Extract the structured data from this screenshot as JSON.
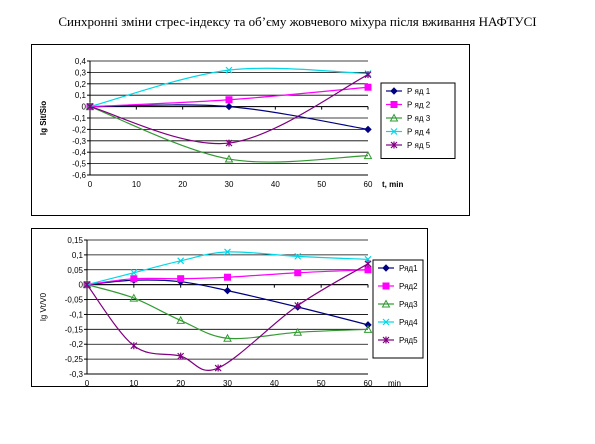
{
  "title": "Синхронні зміни стрес-індексу та об’єму жовчевого міхура після вживання НАФТУСІ",
  "chart_data": [
    {
      "type": "line",
      "ylabel": "lg Sit/Sio",
      "xlabel": "t, min",
      "xlim": [
        0,
        60
      ],
      "ylim": [
        -0.6,
        0.4
      ],
      "x_ticks": [
        0,
        10,
        20,
        30,
        40,
        50,
        60
      ],
      "y_ticks": [
        -0.6,
        -0.5,
        -0.4,
        -0.3,
        -0.2,
        -0.1,
        0,
        0.1,
        0.2,
        0.3,
        0.4
      ],
      "x_tick_labels": [
        "0",
        "10",
        "20",
        "30",
        "40",
        "50",
        "60"
      ],
      "y_tick_labels": [
        "-0,6",
        "-0,5",
        "-0,4",
        "-0,3",
        "-0,2",
        "-0,1",
        "0",
        "0,1",
        "0,2",
        "0,3",
        "0,4"
      ],
      "grid": "horizontal",
      "legend_position": "right",
      "series": [
        {
          "name": "Р яд 1",
          "color": "#000080",
          "marker": "diamond",
          "points": [
            [
              0,
              0
            ],
            [
              30,
              0
            ],
            [
              60,
              -0.2
            ]
          ]
        },
        {
          "name": "Р яд 2",
          "color": "#ff00ff",
          "marker": "square",
          "points": [
            [
              0,
              0
            ],
            [
              30,
              0.06
            ],
            [
              60,
              0.17
            ]
          ]
        },
        {
          "name": "Р яд 3",
          "color": "#339933",
          "marker": "triangle",
          "points": [
            [
              0,
              0
            ],
            [
              30,
              -0.46
            ],
            [
              60,
              -0.43
            ]
          ]
        },
        {
          "name": "Р яд 4",
          "color": "#00d8e8",
          "marker": "x",
          "points": [
            [
              0,
              0
            ],
            [
              30,
              0.32
            ],
            [
              60,
              0.29
            ]
          ]
        },
        {
          "name": "Р яд 5",
          "color": "#800080",
          "marker": "star",
          "points": [
            [
              0,
              0
            ],
            [
              30,
              -0.32
            ],
            [
              60,
              0.28
            ]
          ]
        }
      ]
    },
    {
      "type": "line",
      "ylabel": "lg Vt/V0",
      "xlabel": "min",
      "xlim": [
        0,
        60
      ],
      "ylim": [
        -0.3,
        0.15
      ],
      "x_ticks": [
        0,
        10,
        20,
        30,
        40,
        50,
        60
      ],
      "y_ticks": [
        -0.3,
        -0.25,
        -0.2,
        -0.15,
        -0.1,
        -0.05,
        0,
        0.05,
        0.1,
        0.15
      ],
      "x_tick_labels": [
        "0",
        "10",
        "20",
        "30",
        "40",
        "50",
        "60"
      ],
      "y_tick_labels": [
        "-0,3",
        "-0,25",
        "-0,2",
        "-0,15",
        "-0,1",
        "-0,05",
        "0",
        "0,05",
        "0,1",
        "0,15"
      ],
      "grid": "horizontal",
      "legend_position": "right",
      "series": [
        {
          "name": "Ряд1",
          "color": "#000080",
          "marker": "diamond",
          "points": [
            [
              0,
              0
            ],
            [
              10,
              0.015
            ],
            [
              20,
              0.01
            ],
            [
              30,
              -0.02
            ],
            [
              45,
              -0.075
            ],
            [
              60,
              -0.135
            ]
          ]
        },
        {
          "name": "Ряд2",
          "color": "#ff00ff",
          "marker": "square",
          "points": [
            [
              0,
              0
            ],
            [
              10,
              0.02
            ],
            [
              20,
              0.02
            ],
            [
              30,
              0.025
            ],
            [
              45,
              0.04
            ],
            [
              60,
              0.05
            ]
          ]
        },
        {
          "name": "Ряд3",
          "color": "#339933",
          "marker": "triangle",
          "points": [
            [
              0,
              0
            ],
            [
              10,
              -0.045
            ],
            [
              20,
              -0.12
            ],
            [
              30,
              -0.18
            ],
            [
              45,
              -0.16
            ],
            [
              60,
              -0.15
            ]
          ]
        },
        {
          "name": "Ряд4",
          "color": "#00d8e8",
          "marker": "x",
          "points": [
            [
              0,
              0
            ],
            [
              10,
              0.04
            ],
            [
              20,
              0.08
            ],
            [
              30,
              0.11
            ],
            [
              45,
              0.095
            ],
            [
              60,
              0.085
            ]
          ]
        },
        {
          "name": "Ряд5",
          "color": "#800080",
          "marker": "star",
          "points": [
            [
              0,
              0
            ],
            [
              10,
              -0.205
            ],
            [
              20,
              -0.24
            ],
            [
              28,
              -0.28
            ],
            [
              45,
              -0.07
            ],
            [
              60,
              0.07
            ]
          ]
        }
      ]
    }
  ]
}
